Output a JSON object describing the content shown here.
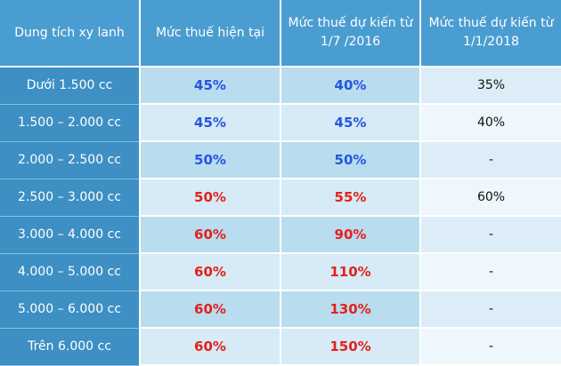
{
  "table": {
    "header": [
      "Dung tích xy lanh",
      "Mức thuế hiện tại",
      "Mức thuế dự kiến từ 1/7 /2016",
      "Mức thuế dự kiến từ 1/1/2018"
    ],
    "rows": [
      [
        "Dưới 1.500 cc",
        "45%",
        "40%",
        "35%"
      ],
      [
        "1.500 – 2.000 cc",
        "45%",
        "45%",
        "40%"
      ],
      [
        "2.000 – 2.500 cc",
        "50%",
        "50%",
        "-"
      ],
      [
        "2.500 – 3.000 cc",
        "50%",
        "55%",
        "60%"
      ],
      [
        "3.000 – 4.000 cc",
        "60%",
        "90%",
        "-"
      ],
      [
        "4.000 – 5.000 cc",
        "60%",
        "110%",
        "-"
      ],
      [
        "5.000 – 6.000 cc",
        "60%",
        "130%",
        "-"
      ],
      [
        "Trên 6.000 cc",
        "60%",
        "150%",
        "-"
      ]
    ]
  }
}
